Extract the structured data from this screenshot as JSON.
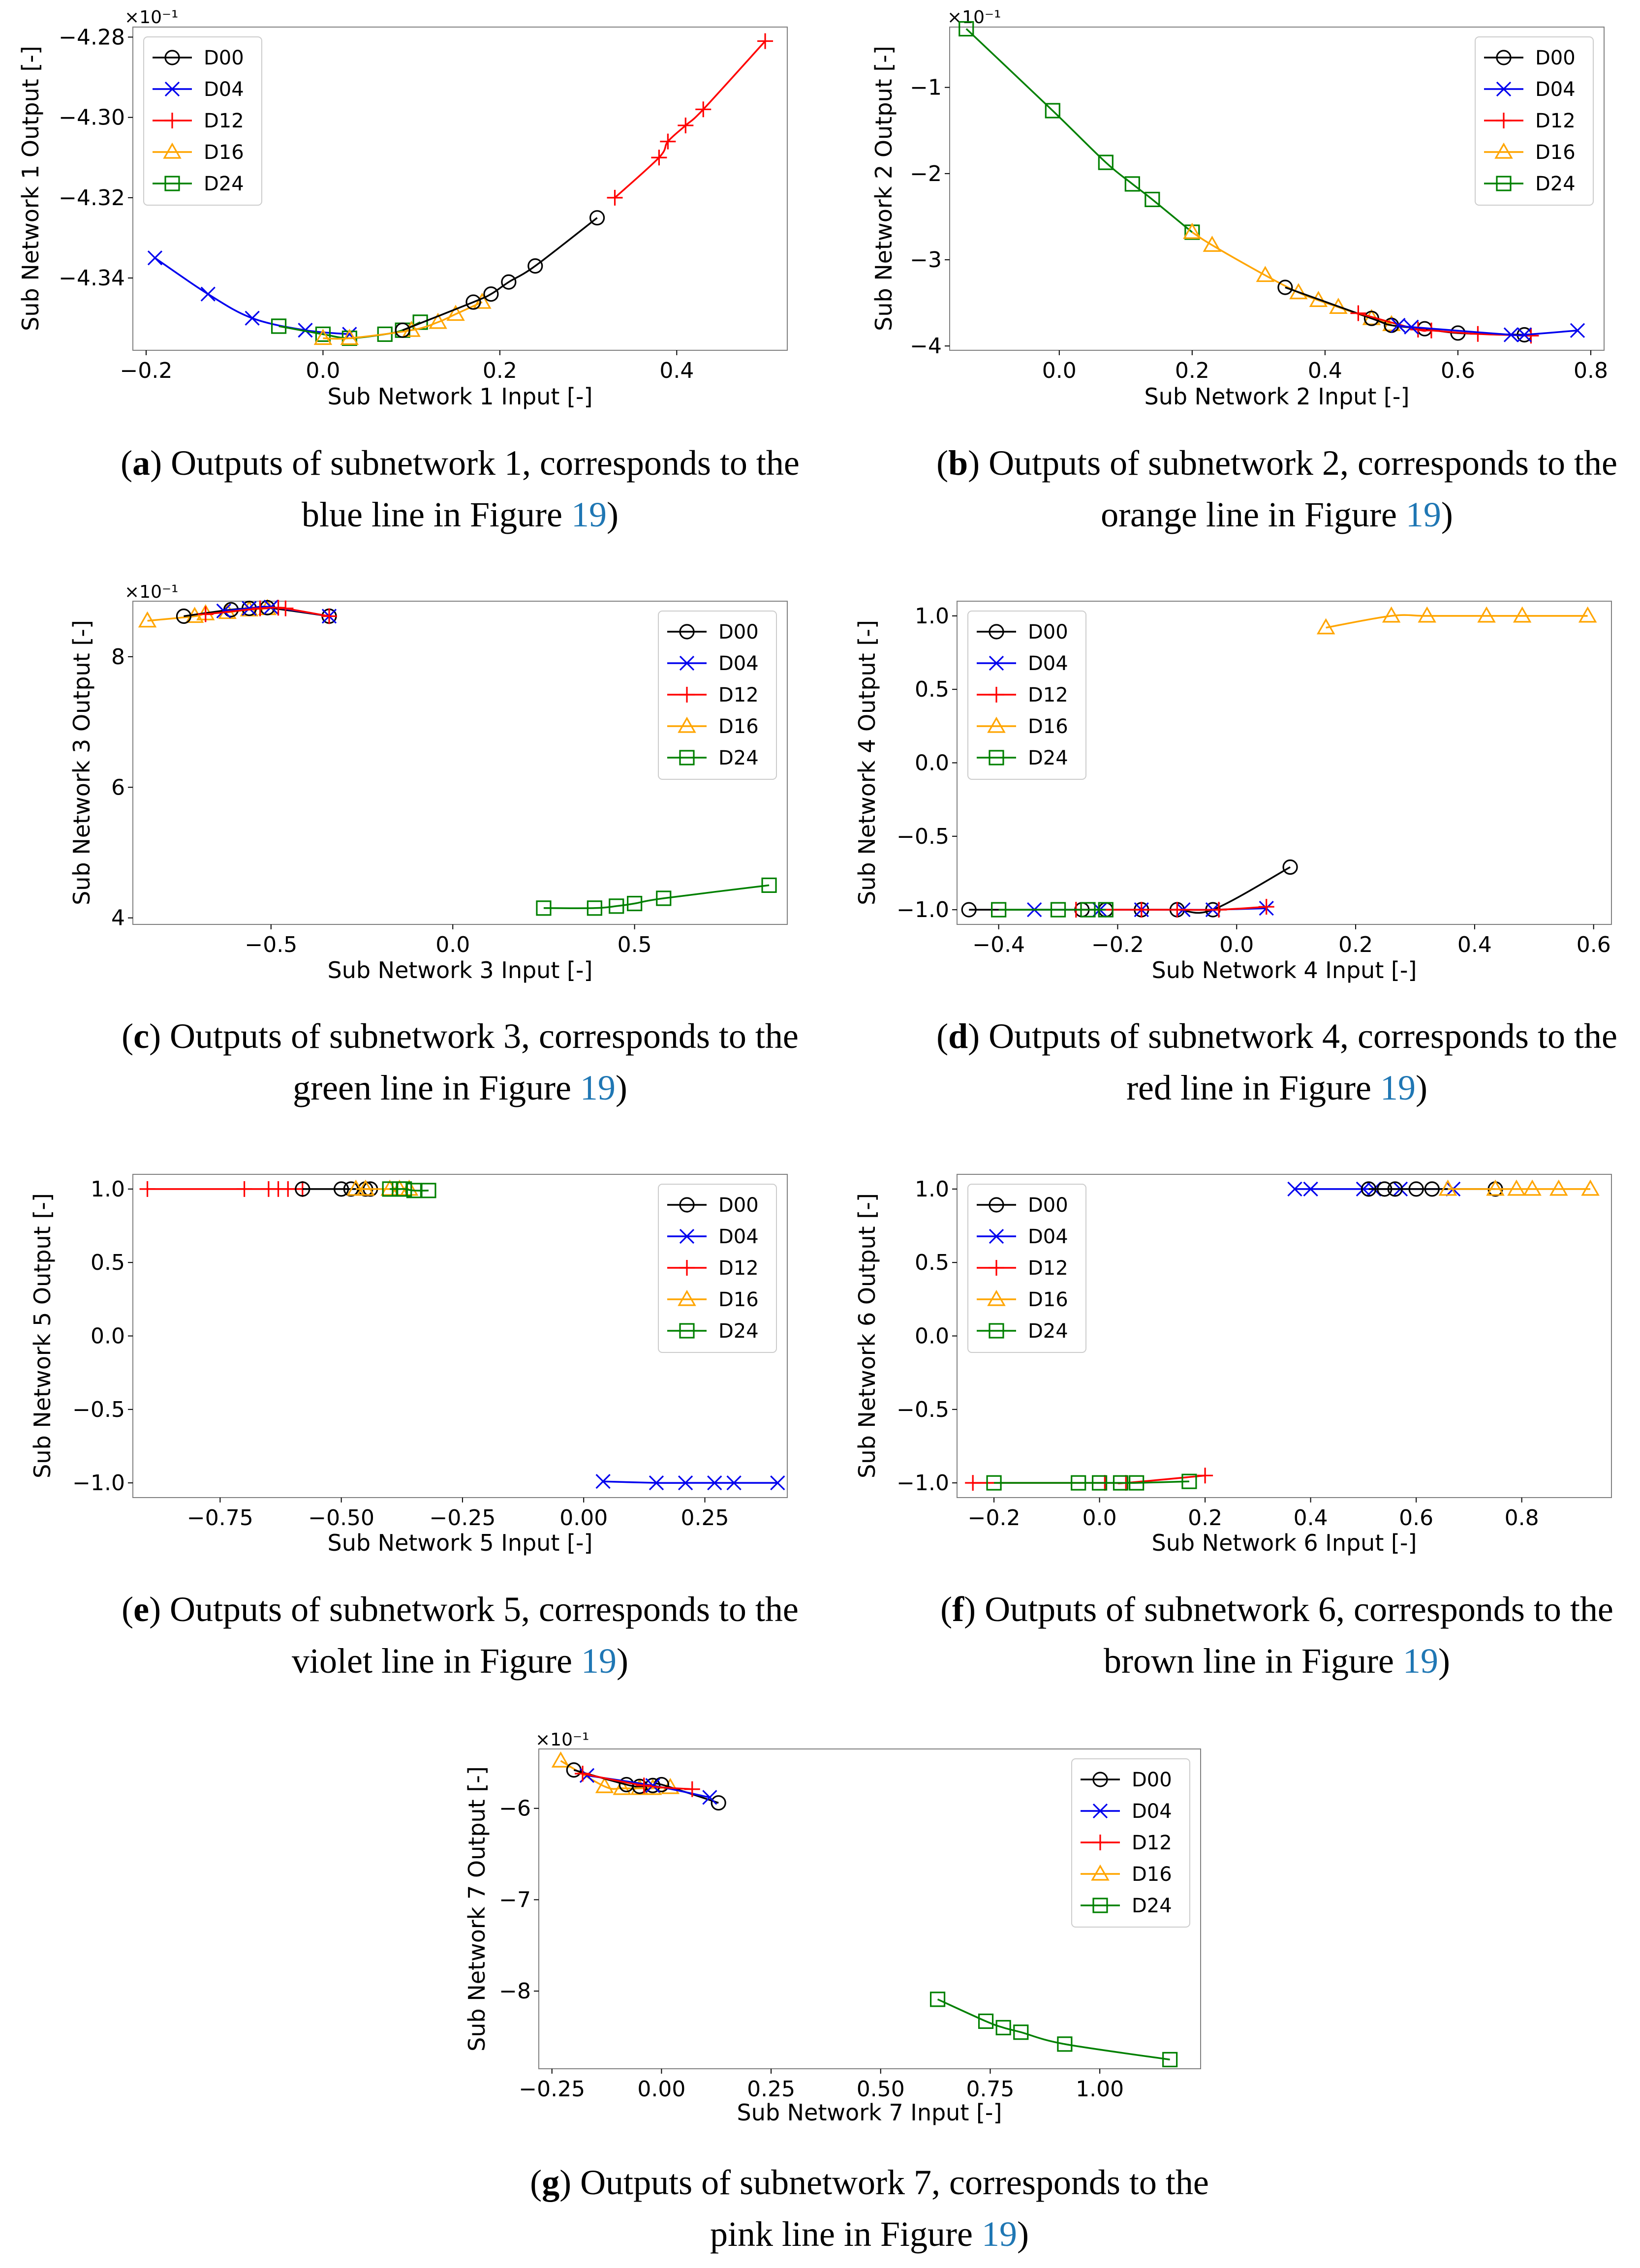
{
  "colors": {
    "D00": "#000000",
    "D04": "#0000ee",
    "D12": "#ff0000",
    "D16": "#ffa500",
    "D24": "#008000",
    "ref": "#1f77b4"
  },
  "legend": [
    "D00",
    "D04",
    "D12",
    "D16",
    "D24"
  ],
  "markers": {
    "D00": "circle",
    "D04": "x",
    "D12": "plus",
    "D16": "triangle",
    "D24": "square"
  },
  "panels": [
    {
      "caption": {
        "letter": "a",
        "line1": "Outputs of subnetwork 1, corresponds to the",
        "line2_pre": "blue line in Figure ",
        "ref": "19",
        "line2_post": ")"
      },
      "chart_data": {
        "type": "line",
        "xlabel": "Sub Network 1 Input [-]",
        "ylabel": "Sub Network 1 Output [-]",
        "multiplier": "×10⁻¹",
        "xlim": [
          -0.215,
          0.525
        ],
        "ylim": [
          -4.358,
          -4.2775
        ],
        "xticks": [
          -0.2,
          0.0,
          0.2,
          0.4
        ],
        "xtick_labels": [
          "−0.2",
          "0.0",
          "0.2",
          "0.4"
        ],
        "yticks": [
          -4.34,
          -4.32,
          -4.3,
          -4.28
        ],
        "ytick_labels": [
          "−4.34",
          "−4.32",
          "−4.30",
          "−4.28"
        ],
        "legend_position": "upper-left",
        "series": [
          {
            "name": "D04",
            "x": [
              -0.19,
              -0.13,
              -0.08,
              -0.02,
              0.03
            ],
            "y": [
              -4.335,
              -4.344,
              -4.35,
              -4.353,
              -4.354
            ]
          },
          {
            "name": "D24",
            "x": [
              -0.05,
              0.0,
              0.03,
              0.07,
              0.09,
              0.11
            ],
            "y": [
              -4.352,
              -4.354,
              -4.355,
              -4.354,
              -4.353,
              -4.351
            ]
          },
          {
            "name": "D16",
            "x": [
              0.0,
              0.03,
              0.1,
              0.13,
              0.15,
              0.18
            ],
            "y": [
              -4.355,
              -4.355,
              -4.353,
              -4.351,
              -4.349,
              -4.346
            ]
          },
          {
            "name": "D00",
            "x": [
              0.09,
              0.17,
              0.19,
              0.21,
              0.24,
              0.31
            ],
            "y": [
              -4.353,
              -4.346,
              -4.344,
              -4.341,
              -4.337,
              -4.325
            ]
          },
          {
            "name": "D12",
            "x": [
              0.33,
              0.38,
              0.39,
              0.41,
              0.43,
              0.5
            ],
            "y": [
              -4.32,
              -4.31,
              -4.306,
              -4.302,
              -4.298,
              -4.281
            ]
          }
        ]
      }
    },
    {
      "caption": {
        "letter": "b",
        "line1": "Outputs of subnetwork 2, corresponds to the",
        "line2_pre": "orange line in Figure ",
        "ref": "19",
        "line2_post": ")"
      },
      "chart_data": {
        "type": "line",
        "xlabel": "Sub Network 2 Input [-]",
        "ylabel": "Sub Network 2 Output [-]",
        "multiplier": "×10⁻¹",
        "xlim": [
          -0.165,
          0.82
        ],
        "ylim": [
          -4.05,
          -0.3
        ],
        "xticks": [
          0.0,
          0.2,
          0.4,
          0.6,
          0.8
        ],
        "xtick_labels": [
          "0.0",
          "0.2",
          "0.4",
          "0.6",
          "0.8"
        ],
        "yticks": [
          -4,
          -3,
          -2,
          -1
        ],
        "ytick_labels": [
          "−4",
          "−3",
          "−2",
          "−1"
        ],
        "legend_position": "upper-right",
        "series": [
          {
            "name": "D24",
            "x": [
              -0.14,
              -0.01,
              0.07,
              0.11,
              0.14,
              0.2
            ],
            "y": [
              -0.32,
              -1.27,
              -1.87,
              -2.12,
              -2.3,
              -2.68
            ]
          },
          {
            "name": "D16",
            "x": [
              0.2,
              0.23,
              0.31,
              0.36,
              0.39,
              0.42,
              0.47,
              0.5
            ],
            "y": [
              -2.68,
              -2.83,
              -3.18,
              -3.38,
              -3.47,
              -3.55,
              -3.68,
              -3.75
            ]
          },
          {
            "name": "D00",
            "x": [
              0.34,
              0.47,
              0.5,
              0.55,
              0.6,
              0.7
            ],
            "y": [
              -3.32,
              -3.68,
              -3.76,
              -3.8,
              -3.85,
              -3.87
            ]
          },
          {
            "name": "D12",
            "x": [
              0.45,
              0.54,
              0.56,
              0.63,
              0.71
            ],
            "y": [
              -3.62,
              -3.81,
              -3.82,
              -3.86,
              -3.88
            ]
          },
          {
            "name": "D04",
            "x": [
              0.51,
              0.53,
              0.68,
              0.7,
              0.78
            ],
            "y": [
              -3.76,
              -3.78,
              -3.87,
              -3.87,
              -3.82
            ]
          }
        ]
      }
    },
    {
      "caption": {
        "letter": "c",
        "line1": "Outputs of subnetwork 3, corresponds to the",
        "line2_pre": "green line in Figure ",
        "ref": "19",
        "line2_post": ")"
      },
      "chart_data": {
        "type": "line",
        "xlabel": "Sub Network 3 Input [-]",
        "ylabel": "Sub Network 3 Output [-]",
        "multiplier": "×10⁻¹",
        "xlim": [
          -0.88,
          0.92
        ],
        "ylim": [
          3.9,
          8.85
        ],
        "xticks": [
          -0.5,
          0.0,
          0.5
        ],
        "xtick_labels": [
          "−0.5",
          "0.0",
          "0.5"
        ],
        "yticks": [
          4,
          6,
          8
        ],
        "ytick_labels": [
          "4",
          "6",
          "8"
        ],
        "legend_position": "upper-right",
        "series": [
          {
            "name": "D16",
            "x": [
              -0.84,
              -0.71,
              -0.68,
              -0.62,
              -0.56,
              -0.51
            ],
            "y": [
              8.55,
              8.62,
              8.66,
              8.68,
              8.72,
              8.74
            ]
          },
          {
            "name": "D00",
            "x": [
              -0.74,
              -0.61,
              -0.56,
              -0.51,
              -0.34
            ],
            "y": [
              8.62,
              8.72,
              8.74,
              8.75,
              8.62
            ]
          },
          {
            "name": "D04",
            "x": [
              -0.63,
              -0.56,
              -0.5,
              -0.34
            ],
            "y": [
              8.7,
              8.74,
              8.76,
              8.62
            ]
          },
          {
            "name": "D12",
            "x": [
              -0.68,
              -0.53,
              -0.48,
              -0.46,
              -0.34
            ],
            "y": [
              8.65,
              8.74,
              8.75,
              8.74,
              8.62
            ]
          },
          {
            "name": "D24",
            "x": [
              0.25,
              0.39,
              0.45,
              0.5,
              0.58,
              0.87
            ],
            "y": [
              4.15,
              4.15,
              4.18,
              4.22,
              4.3,
              4.5
            ]
          }
        ]
      }
    },
    {
      "caption": {
        "letter": "d",
        "line1": "Outputs of subnetwork 4, corresponds to the",
        "line2_pre": "red line in Figure ",
        "ref": "19",
        "line2_post": ")"
      },
      "chart_data": {
        "type": "line",
        "xlabel": "Sub Network 4 Input [-]",
        "ylabel": "Sub Network 4 Output [-]",
        "xlim": [
          -0.47,
          0.63
        ],
        "ylim": [
          -1.1,
          1.1
        ],
        "xticks": [
          -0.4,
          -0.2,
          0.0,
          0.2,
          0.4,
          0.6
        ],
        "xtick_labels": [
          "−0.4",
          "−0.2",
          "0.0",
          "0.2",
          "0.4",
          "0.6"
        ],
        "yticks": [
          -1.0,
          -0.5,
          0.0,
          0.5,
          1.0
        ],
        "ytick_labels": [
          "−1.0",
          "−0.5",
          "0.0",
          "0.5",
          "1.0"
        ],
        "legend_position": "upper-left",
        "series": [
          {
            "name": "D00",
            "x": [
              -0.45,
              -0.26,
              -0.22,
              -0.16,
              -0.1,
              -0.04,
              0.09
            ],
            "y": [
              -1.0,
              -1.0,
              -1.0,
              -1.0,
              -1.0,
              -1.0,
              -0.71
            ]
          },
          {
            "name": "D04",
            "x": [
              -0.34,
              -0.23,
              -0.16,
              -0.09,
              -0.04,
              0.05
            ],
            "y": [
              -1.0,
              -1.0,
              -1.0,
              -1.0,
              -1.0,
              -0.99
            ]
          },
          {
            "name": "D12",
            "x": [
              -0.27,
              -0.16,
              -0.1,
              -0.03,
              0.05
            ],
            "y": [
              -1.0,
              -1.0,
              -1.0,
              -1.0,
              -0.98
            ]
          },
          {
            "name": "D24",
            "x": [
              -0.4,
              -0.3,
              -0.25,
              -0.22
            ],
            "y": [
              -1.0,
              -1.0,
              -1.0,
              -1.0
            ]
          },
          {
            "name": "D16",
            "x": [
              0.15,
              0.26,
              0.32,
              0.42,
              0.48,
              0.59
            ],
            "y": [
              0.92,
              1.0,
              1.0,
              1.0,
              1.0,
              1.0
            ]
          }
        ]
      }
    },
    {
      "caption": {
        "letter": "e",
        "line1": "Outputs of subnetwork 5, corresponds to the",
        "line2_pre": "violet line in Figure ",
        "ref": "19",
        "line2_post": ")"
      },
      "chart_data": {
        "type": "line",
        "xlabel": "Sub Network 5 Input [-]",
        "ylabel": "Sub Network 5 Output [-]",
        "xlim": [
          -0.93,
          0.42
        ],
        "ylim": [
          -1.1,
          1.1
        ],
        "xticks": [
          -0.75,
          -0.5,
          -0.25,
          0.0,
          0.25
        ],
        "xtick_labels": [
          "−0.75",
          "−0.50",
          "−0.25",
          "0.00",
          "0.25"
        ],
        "yticks": [
          -1.0,
          -0.5,
          0.0,
          0.5,
          1.0
        ],
        "ytick_labels": [
          "−1.0",
          "−0.5",
          "0.0",
          "0.5",
          "1.0"
        ],
        "legend_position": "upper-right",
        "series": [
          {
            "name": "D12",
            "x": [
              -0.9,
              -0.7,
              -0.65,
              -0.63,
              -0.61,
              -0.58
            ],
            "y": [
              1.0,
              1.0,
              1.0,
              1.0,
              1.0,
              1.0
            ]
          },
          {
            "name": "D00",
            "x": [
              -0.58,
              -0.5,
              -0.48,
              -0.45,
              -0.44
            ],
            "y": [
              1.0,
              1.0,
              1.0,
              1.0,
              1.0
            ]
          },
          {
            "name": "D16",
            "x": [
              -0.47,
              -0.45,
              -0.4,
              -0.38,
              -0.36
            ],
            "y": [
              1.0,
              1.0,
              1.0,
              1.0,
              1.0
            ]
          },
          {
            "name": "D24",
            "x": [
              -0.4,
              -0.38,
              -0.37,
              -0.35,
              -0.32
            ],
            "y": [
              1.0,
              1.0,
              1.0,
              0.99,
              0.99
            ]
          },
          {
            "name": "D04",
            "x": [
              0.04,
              0.15,
              0.21,
              0.27,
              0.31,
              0.4
            ],
            "y": [
              -0.99,
              -1.0,
              -1.0,
              -1.0,
              -1.0,
              -1.0
            ]
          }
        ]
      }
    },
    {
      "caption": {
        "letter": "f",
        "line1": "Outputs of subnetwork 6, corresponds to the",
        "line2_pre": "brown line in Figure ",
        "ref": "19",
        "line2_post": ")"
      },
      "chart_data": {
        "type": "line",
        "xlabel": "Sub Network 6 Input [-]",
        "ylabel": "Sub Network 6 Output [-]",
        "xlim": [
          -0.27,
          0.97
        ],
        "ylim": [
          -1.1,
          1.1
        ],
        "xticks": [
          -0.2,
          0.0,
          0.2,
          0.4,
          0.6,
          0.8
        ],
        "xtick_labels": [
          "−0.2",
          "0.0",
          "0.2",
          "0.4",
          "0.6",
          "0.8"
        ],
        "yticks": [
          -1.0,
          -0.5,
          0.0,
          0.5,
          1.0
        ],
        "ytick_labels": [
          "−1.0",
          "−0.5",
          "0.0",
          "0.5",
          "1.0"
        ],
        "legend_position": "upper-left",
        "series": [
          {
            "name": "D04",
            "x": [
              0.37,
              0.4,
              0.5,
              0.52,
              0.57,
              0.67
            ],
            "y": [
              1.0,
              1.0,
              1.0,
              1.0,
              1.0,
              1.0
            ]
          },
          {
            "name": "D00",
            "x": [
              0.51,
              0.54,
              0.56,
              0.6,
              0.63,
              0.75
            ],
            "y": [
              1.0,
              1.0,
              1.0,
              1.0,
              1.0,
              1.0
            ]
          },
          {
            "name": "D16",
            "x": [
              0.66,
              0.75,
              0.79,
              0.82,
              0.87,
              0.93
            ],
            "y": [
              1.0,
              1.0,
              1.0,
              1.0,
              1.0,
              1.0
            ]
          },
          {
            "name": "D12",
            "x": [
              -0.24,
              0.01,
              0.05,
              0.2
            ],
            "y": [
              -1.0,
              -1.0,
              -1.0,
              -0.95
            ]
          },
          {
            "name": "D24",
            "x": [
              -0.2,
              -0.04,
              0.0,
              0.04,
              0.07,
              0.17
            ],
            "y": [
              -1.0,
              -1.0,
              -1.0,
              -1.0,
              -1.0,
              -0.99
            ]
          }
        ]
      }
    },
    {
      "caption": {
        "letter": "g",
        "line1": "Outputs of subnetwork 7, corresponds to the",
        "line2_pre": "pink line in Figure ",
        "ref": "19",
        "line2_post": ")"
      },
      "chart_data": {
        "type": "line",
        "xlabel": "Sub Network 7 Input [-]",
        "ylabel": "Sub Network 7 Output [-]",
        "multiplier": "×10⁻¹",
        "xlim": [
          -0.28,
          1.23
        ],
        "ylim": [
          -8.85,
          -5.35
        ],
        "xticks": [
          -0.25,
          0.0,
          0.25,
          0.5,
          0.75,
          1.0
        ],
        "xtick_labels": [
          "−0.25",
          "0.00",
          "0.25",
          "0.50",
          "0.75",
          "1.00"
        ],
        "yticks": [
          -8,
          -7,
          -6
        ],
        "ytick_labels": [
          "−8",
          "−7",
          "−6"
        ],
        "legend_position": "upper-right",
        "series": [
          {
            "name": "D16",
            "x": [
              -0.23,
              -0.13,
              -0.09,
              -0.05,
              -0.02,
              0.02
            ],
            "y": [
              -5.48,
              -5.76,
              -5.78,
              -5.78,
              -5.78,
              -5.77
            ]
          },
          {
            "name": "D00",
            "x": [
              -0.2,
              -0.08,
              -0.05,
              -0.02,
              0.0,
              0.13
            ],
            "y": [
              -5.58,
              -5.74,
              -5.76,
              -5.75,
              -5.74,
              -5.94
            ]
          },
          {
            "name": "D04",
            "x": [
              -0.17,
              -0.02,
              0.11
            ],
            "y": [
              -5.64,
              -5.75,
              -5.88
            ]
          },
          {
            "name": "D12",
            "x": [
              -0.18,
              -0.04,
              0.07
            ],
            "y": [
              -5.62,
              -5.75,
              -5.79
            ]
          },
          {
            "name": "D24",
            "x": [
              0.63,
              0.74,
              0.78,
              0.82,
              0.92,
              1.16
            ],
            "y": [
              -8.09,
              -8.33,
              -8.4,
              -8.45,
              -8.58,
              -8.75
            ]
          }
        ]
      }
    }
  ]
}
